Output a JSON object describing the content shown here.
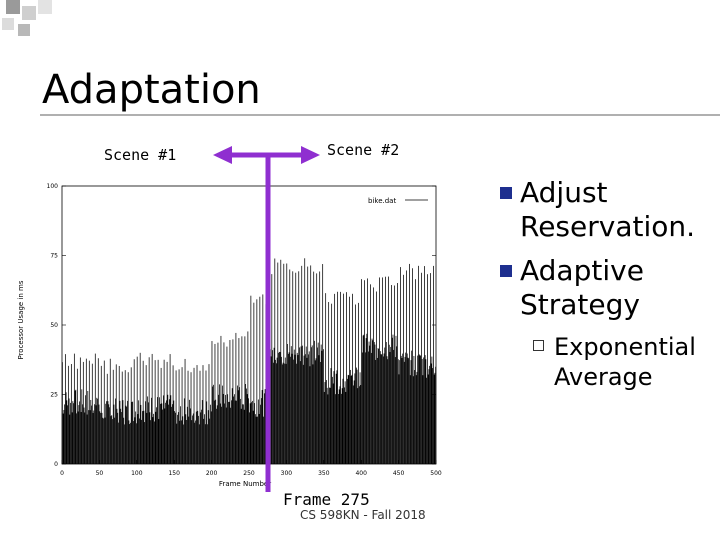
{
  "slide": {
    "title": "Adaptation",
    "scene1_label": "Scene #1",
    "scene2_label": "Scene #2",
    "frame_label": "Frame 275",
    "footer": "CS 598KN - Fall 2018",
    "bullets": [
      "Adjust Reservation.",
      "Adaptive Strategy"
    ],
    "sub_bullets": [
      "Exponential Average"
    ],
    "colors": {
      "arrow": "#8f2fd0",
      "bullet_marker": "#1e2f8f",
      "bars": "#000000"
    }
  },
  "chart_data": {
    "type": "bar",
    "xlabel": "Frame Number",
    "ylabel": "Processor Usage in ms",
    "legend": "bike.dat",
    "xlim": [
      0,
      500
    ],
    "ylim": [
      0,
      100
    ],
    "xticks": [
      0,
      50,
      100,
      150,
      200,
      250,
      300,
      350,
      400,
      450,
      500
    ],
    "yticks": [
      0,
      25,
      50,
      75,
      100
    ],
    "segments": [
      {
        "x0": 0,
        "x1": 50,
        "base": 22,
        "peak": 40
      },
      {
        "x0": 50,
        "x1": 100,
        "base": 19,
        "peak": 38
      },
      {
        "x0": 100,
        "x1": 150,
        "base": 20,
        "peak": 40
      },
      {
        "x0": 150,
        "x1": 200,
        "base": 19,
        "peak": 38
      },
      {
        "x0": 200,
        "x1": 250,
        "base": 24,
        "peak": 48
      },
      {
        "x0": 250,
        "x1": 275,
        "base": 22,
        "peak": 62
      },
      {
        "x0": 275,
        "x1": 350,
        "base": 40,
        "peak": 74
      },
      {
        "x0": 350,
        "x1": 400,
        "base": 30,
        "peak": 62
      },
      {
        "x0": 400,
        "x1": 450,
        "base": 42,
        "peak": 68
      },
      {
        "x0": 450,
        "x1": 500,
        "base": 36,
        "peak": 72
      }
    ]
  }
}
